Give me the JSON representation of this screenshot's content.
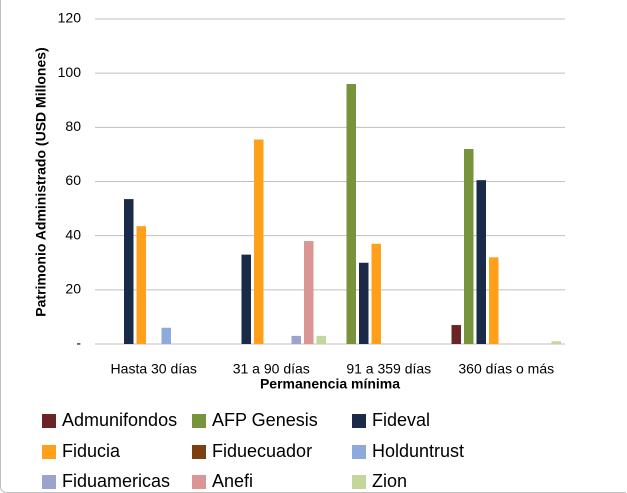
{
  "chart_data": {
    "type": "bar",
    "y_label": "Patrimonio Administrado (USD Millones)",
    "x_label": "Permanencia mínima",
    "categories": [
      "Hasta 30 días",
      "31 a 90 días",
      "91 a 359 días",
      "360 días o más"
    ],
    "series": [
      {
        "name": "Admunifondos",
        "color": "#6b2426",
        "values": [
          0,
          0,
          0,
          7
        ]
      },
      {
        "name": "AFP Genesis",
        "color": "#77933c",
        "values": [
          0,
          0,
          96,
          72
        ]
      },
      {
        "name": "Fideval",
        "color": "#1a2a48",
        "values": [
          53.5,
          33,
          30,
          60.5
        ]
      },
      {
        "name": "Fiducia",
        "color": "#ff9f1a",
        "values": [
          43.5,
          75.5,
          37,
          32
        ]
      },
      {
        "name": "Fiduecuador",
        "color": "#7b3f10",
        "values": [
          0,
          0,
          0,
          0
        ]
      },
      {
        "name": "Holduntrust",
        "color": "#8eaadc",
        "values": [
          6,
          0,
          0,
          0
        ]
      },
      {
        "name": "Fiduamericas",
        "color": "#9aa4cc",
        "values": [
          0,
          3,
          0,
          0
        ]
      },
      {
        "name": "Anefi",
        "color": "#d99694",
        "values": [
          0,
          38,
          0,
          0
        ]
      },
      {
        "name": "Zion",
        "color": "#c4d79b",
        "values": [
          0,
          3,
          0,
          1
        ]
      }
    ],
    "ylim": [
      0,
      120
    ],
    "yticks": [
      {
        "value": 0,
        "label": "-"
      },
      20,
      40,
      60,
      80,
      100,
      120
    ],
    "grid": true
  }
}
